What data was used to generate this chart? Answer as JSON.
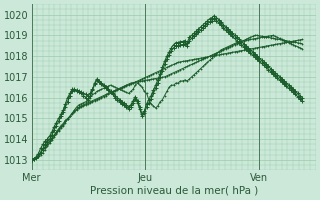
{
  "title": "Pression niveau de la mer( hPa )",
  "xlabel_ticks": [
    "Mer",
    "Jeu",
    "Ven"
  ],
  "xlabel_tick_positions": [
    0.0,
    0.4,
    0.8
  ],
  "ylim": [
    1012.5,
    1020.5
  ],
  "yticks": [
    1013,
    1014,
    1015,
    1016,
    1017,
    1018,
    1019,
    1020
  ],
  "bg_color": "#cce8d8",
  "grid_color": "#99ccaa",
  "line_color": "#1a5c2a",
  "vline_color": "#4a7a5a",
  "series_x": [
    [
      0.0,
      0.008,
      0.016,
      0.024,
      0.032,
      0.04,
      0.048,
      0.056,
      0.064,
      0.072,
      0.08,
      0.088,
      0.096,
      0.104,
      0.112,
      0.12,
      0.128,
      0.136,
      0.144,
      0.152,
      0.16,
      0.168,
      0.176,
      0.184,
      0.192,
      0.2,
      0.208,
      0.216,
      0.224,
      0.232,
      0.24,
      0.248,
      0.256,
      0.264,
      0.272,
      0.28,
      0.288,
      0.296,
      0.304,
      0.312,
      0.32,
      0.328,
      0.336,
      0.344,
      0.352,
      0.36,
      0.368,
      0.376,
      0.384,
      0.392,
      0.4,
      0.408,
      0.416,
      0.424,
      0.432,
      0.44,
      0.448,
      0.456,
      0.464,
      0.472,
      0.48,
      0.488,
      0.496,
      0.504,
      0.512,
      0.52,
      0.528,
      0.536,
      0.544,
      0.552,
      0.56,
      0.568,
      0.576,
      0.584,
      0.592,
      0.6,
      0.608,
      0.616,
      0.624,
      0.632,
      0.64,
      0.648,
      0.656,
      0.664,
      0.672,
      0.68,
      0.688,
      0.696,
      0.704,
      0.712,
      0.72,
      0.728,
      0.736,
      0.744,
      0.752,
      0.76,
      0.768,
      0.776,
      0.784,
      0.792,
      0.8,
      0.808,
      0.816,
      0.824,
      0.832,
      0.84,
      0.848,
      0.856,
      0.864,
      0.872,
      0.88,
      0.888,
      0.896,
      0.904,
      0.912,
      0.92,
      0.928,
      0.936,
      0.944,
      0.952
    ],
    [
      0.0,
      0.008,
      0.016,
      0.024,
      0.032,
      0.04,
      0.048,
      0.056,
      0.064,
      0.072,
      0.08,
      0.088,
      0.096,
      0.104,
      0.112,
      0.12,
      0.128,
      0.136,
      0.144,
      0.152,
      0.16,
      0.168,
      0.176,
      0.184,
      0.192,
      0.2,
      0.208,
      0.216,
      0.224,
      0.232,
      0.24,
      0.248,
      0.256,
      0.264,
      0.272,
      0.28,
      0.288,
      0.296,
      0.304,
      0.312,
      0.32,
      0.328,
      0.336,
      0.344,
      0.352,
      0.36,
      0.368,
      0.376,
      0.384,
      0.392,
      0.4,
      0.408,
      0.416,
      0.424,
      0.432,
      0.44,
      0.448,
      0.456,
      0.464,
      0.472,
      0.48,
      0.488,
      0.496,
      0.504,
      0.512,
      0.52,
      0.528,
      0.536,
      0.544,
      0.552,
      0.56,
      0.568,
      0.576,
      0.584,
      0.592,
      0.6,
      0.608,
      0.616,
      0.624,
      0.632,
      0.64,
      0.648,
      0.656,
      0.664,
      0.672,
      0.68,
      0.688,
      0.696,
      0.704,
      0.712,
      0.72,
      0.728,
      0.736,
      0.744,
      0.752,
      0.76,
      0.768,
      0.776,
      0.784,
      0.792,
      0.8,
      0.808,
      0.816,
      0.824,
      0.832,
      0.84,
      0.848,
      0.856,
      0.864,
      0.872,
      0.88,
      0.888,
      0.896,
      0.904,
      0.912,
      0.92,
      0.928,
      0.936,
      0.944,
      0.952
    ],
    [
      0.0,
      0.008,
      0.016,
      0.024,
      0.032,
      0.04,
      0.048,
      0.056,
      0.064,
      0.072,
      0.08,
      0.088,
      0.096,
      0.104,
      0.112,
      0.12,
      0.128,
      0.136,
      0.144,
      0.152,
      0.16,
      0.168,
      0.176,
      0.184,
      0.192,
      0.2,
      0.208,
      0.216,
      0.224,
      0.232,
      0.24,
      0.248,
      0.256,
      0.264,
      0.272,
      0.28,
      0.288,
      0.296,
      0.304,
      0.312,
      0.32,
      0.328,
      0.336,
      0.344,
      0.352,
      0.36,
      0.368,
      0.376,
      0.384,
      0.392,
      0.4,
      0.408,
      0.416,
      0.424,
      0.432,
      0.44,
      0.448,
      0.456,
      0.464,
      0.472,
      0.48,
      0.488,
      0.496,
      0.504,
      0.512,
      0.52,
      0.528,
      0.536,
      0.544,
      0.552,
      0.56,
      0.568,
      0.576,
      0.584,
      0.592,
      0.6,
      0.608,
      0.616,
      0.624,
      0.632,
      0.64,
      0.648,
      0.656,
      0.664,
      0.672,
      0.68,
      0.688,
      0.696,
      0.704,
      0.712,
      0.72,
      0.728,
      0.736,
      0.744,
      0.752,
      0.76,
      0.768,
      0.776,
      0.784,
      0.792,
      0.8,
      0.808,
      0.816,
      0.824,
      0.832,
      0.84,
      0.848,
      0.856,
      0.864,
      0.872,
      0.88,
      0.888,
      0.896,
      0.904,
      0.912,
      0.92,
      0.928,
      0.936,
      0.944,
      0.952
    ]
  ],
  "series": [
    [
      1013.0,
      1013.05,
      1013.1,
      1013.2,
      1013.35,
      1013.5,
      1013.6,
      1013.75,
      1013.9,
      1014.05,
      1014.2,
      1014.35,
      1014.5,
      1014.65,
      1014.75,
      1014.9,
      1015.0,
      1015.1,
      1015.2,
      1015.3,
      1015.4,
      1015.5,
      1015.55,
      1015.6,
      1015.65,
      1015.7,
      1015.75,
      1015.8,
      1015.85,
      1015.9,
      1015.95,
      1016.0,
      1016.05,
      1016.1,
      1016.15,
      1016.2,
      1016.25,
      1016.3,
      1016.35,
      1016.4,
      1016.45,
      1016.5,
      1016.55,
      1016.6,
      1016.65,
      1016.7,
      1016.75,
      1016.8,
      1016.85,
      1016.9,
      1016.95,
      1017.0,
      1017.05,
      1017.1,
      1017.15,
      1017.2,
      1017.25,
      1017.3,
      1017.35,
      1017.4,
      1017.45,
      1017.5,
      1017.55,
      1017.6,
      1017.65,
      1017.7,
      1017.72,
      1017.74,
      1017.76,
      1017.78,
      1017.8,
      1017.82,
      1017.84,
      1017.86,
      1017.88,
      1017.9,
      1017.92,
      1017.94,
      1017.96,
      1017.98,
      1018.0,
      1018.02,
      1018.04,
      1018.06,
      1018.08,
      1018.1,
      1018.12,
      1018.14,
      1018.16,
      1018.18,
      1018.2,
      1018.22,
      1018.24,
      1018.26,
      1018.28,
      1018.3,
      1018.32,
      1018.34,
      1018.36,
      1018.38,
      1018.4,
      1018.42,
      1018.44,
      1018.46,
      1018.48,
      1018.5,
      1018.52,
      1018.54,
      1018.56,
      1018.58,
      1018.6,
      1018.62,
      1018.64,
      1018.66,
      1018.68,
      1018.7,
      1018.72,
      1018.74,
      1018.76,
      1018.78,
      1018.8
    ],
    [
      1013.0,
      1013.05,
      1013.1,
      1013.2,
      1013.35,
      1013.5,
      1013.6,
      1013.75,
      1013.9,
      1014.05,
      1014.2,
      1014.3,
      1014.45,
      1014.6,
      1014.7,
      1014.85,
      1014.95,
      1015.1,
      1015.25,
      1015.35,
      1015.45,
      1015.55,
      1015.6,
      1015.65,
      1015.7,
      1015.75,
      1015.8,
      1015.85,
      1015.9,
      1015.95,
      1016.0,
      1016.05,
      1016.1,
      1016.15,
      1016.2,
      1016.25,
      1016.3,
      1016.35,
      1016.4,
      1016.45,
      1016.5,
      1016.55,
      1016.6,
      1016.65,
      1016.7,
      1016.72,
      1016.74,
      1016.76,
      1016.78,
      1016.8,
      1016.82,
      1016.84,
      1016.86,
      1016.88,
      1016.9,
      1016.92,
      1016.94,
      1016.96,
      1016.98,
      1017.0,
      1017.05,
      1017.1,
      1017.15,
      1017.2,
      1017.25,
      1017.3,
      1017.35,
      1017.4,
      1017.45,
      1017.5,
      1017.55,
      1017.6,
      1017.65,
      1017.7,
      1017.75,
      1017.8,
      1017.85,
      1017.9,
      1017.95,
      1018.0,
      1018.05,
      1018.1,
      1018.15,
      1018.2,
      1018.25,
      1018.3,
      1018.35,
      1018.4,
      1018.45,
      1018.5,
      1018.55,
      1018.6,
      1018.65,
      1018.7,
      1018.75,
      1018.8,
      1018.85,
      1018.9,
      1018.95,
      1019.0,
      1019.0,
      1018.98,
      1018.96,
      1018.94,
      1018.92,
      1018.9,
      1018.88,
      1018.86,
      1018.84,
      1018.82,
      1018.8,
      1018.78,
      1018.76,
      1018.74,
      1018.72,
      1018.7,
      1018.68,
      1018.66,
      1018.64,
      1018.62,
      1018.6
    ],
    [
      1013.0,
      1013.05,
      1013.1,
      1013.15,
      1013.25,
      1013.35,
      1013.5,
      1013.65,
      1013.8,
      1013.95,
      1014.1,
      1014.25,
      1014.4,
      1014.55,
      1014.65,
      1014.8,
      1014.95,
      1015.1,
      1015.25,
      1015.4,
      1015.55,
      1015.65,
      1015.7,
      1015.75,
      1015.8,
      1015.85,
      1016.0,
      1016.15,
      1016.2,
      1016.3,
      1016.35,
      1016.4,
      1016.45,
      1016.5,
      1016.55,
      1016.6,
      1016.55,
      1016.5,
      1016.45,
      1016.4,
      1016.35,
      1016.3,
      1016.25,
      1016.2,
      1016.3,
      1016.4,
      1016.6,
      1016.7,
      1016.6,
      1016.5,
      1016.3,
      1016.2,
      1015.9,
      1015.7,
      1015.6,
      1015.5,
      1015.6,
      1015.8,
      1015.9,
      1016.1,
      1016.3,
      1016.5,
      1016.6,
      1016.6,
      1016.7,
      1016.7,
      1016.8,
      1016.8,
      1016.85,
      1016.8,
      1016.9,
      1017.0,
      1017.1,
      1017.2,
      1017.3,
      1017.4,
      1017.5,
      1017.6,
      1017.7,
      1017.8,
      1017.9,
      1018.0,
      1018.1,
      1018.2,
      1018.3,
      1018.35,
      1018.4,
      1018.45,
      1018.5,
      1018.55,
      1018.6,
      1018.65,
      1018.7,
      1018.72,
      1018.74,
      1018.76,
      1018.78,
      1018.8,
      1018.82,
      1018.84,
      1018.86,
      1018.88,
      1018.9,
      1018.92,
      1018.94,
      1018.96,
      1018.98,
      1019.0,
      1018.95,
      1018.9,
      1018.85,
      1018.8,
      1018.75,
      1018.7,
      1018.65,
      1018.6,
      1018.55,
      1018.5,
      1018.45,
      1018.4,
      1018.35
    ]
  ],
  "wavy_series": [
    [
      1013.0,
      1013.05,
      1013.15,
      1013.3,
      1013.55,
      1013.75,
      1013.9,
      1014.0,
      1014.15,
      1014.35,
      1014.6,
      1014.8,
      1015.0,
      1015.2,
      1015.4,
      1015.7,
      1016.0,
      1016.2,
      1016.4,
      1016.4,
      1016.35,
      1016.3,
      1016.25,
      1016.2,
      1016.15,
      1016.1,
      1016.2,
      1016.4,
      1016.7,
      1016.9,
      1016.8,
      1016.7,
      1016.6,
      1016.5,
      1016.4,
      1016.3,
      1016.2,
      1016.1,
      1016.0,
      1015.9,
      1015.8,
      1015.75,
      1015.65,
      1015.55,
      1015.65,
      1015.85,
      1016.05,
      1015.85,
      1015.55,
      1015.2,
      1015.35,
      1015.7,
      1015.9,
      1016.1,
      1016.35,
      1016.6,
      1016.85,
      1017.15,
      1017.45,
      1017.75,
      1018.0,
      1018.2,
      1018.4,
      1018.55,
      1018.65,
      1018.65,
      1018.7,
      1018.7,
      1018.75,
      1018.65,
      1018.9,
      1019.0,
      1019.1,
      1019.2,
      1019.3,
      1019.4,
      1019.5,
      1019.6,
      1019.7,
      1019.8,
      1019.85,
      1019.95,
      1019.85,
      1019.75,
      1019.65,
      1019.5,
      1019.4,
      1019.3,
      1019.2,
      1019.1,
      1019.0,
      1018.9,
      1018.8,
      1018.7,
      1018.6,
      1018.5,
      1018.4,
      1018.3,
      1018.2,
      1018.1,
      1018.0,
      1017.9,
      1017.8,
      1017.7,
      1017.6,
      1017.5,
      1017.4,
      1017.3,
      1017.2,
      1017.1,
      1017.0,
      1016.9,
      1016.8,
      1016.7,
      1016.6,
      1016.5,
      1016.4,
      1016.3,
      1016.2,
      1016.1,
      1016.0
    ],
    [
      1013.0,
      1013.05,
      1013.1,
      1013.2,
      1013.35,
      1013.55,
      1013.75,
      1013.85,
      1014.0,
      1014.2,
      1014.45,
      1014.65,
      1014.85,
      1015.1,
      1015.3,
      1015.55,
      1015.8,
      1016.1,
      1016.3,
      1016.35,
      1016.3,
      1016.25,
      1016.2,
      1016.1,
      1016.0,
      1015.9,
      1016.1,
      1016.35,
      1016.65,
      1016.85,
      1016.75,
      1016.65,
      1016.55,
      1016.45,
      1016.35,
      1016.25,
      1016.15,
      1016.0,
      1015.9,
      1015.8,
      1015.7,
      1015.65,
      1015.55,
      1015.45,
      1015.55,
      1015.75,
      1015.95,
      1015.75,
      1015.45,
      1015.1,
      1015.25,
      1015.55,
      1015.75,
      1015.95,
      1016.2,
      1016.45,
      1016.7,
      1017.0,
      1017.3,
      1017.6,
      1017.85,
      1018.05,
      1018.25,
      1018.4,
      1018.5,
      1018.5,
      1018.55,
      1018.55,
      1018.6,
      1018.5,
      1018.75,
      1018.85,
      1018.95,
      1019.05,
      1019.15,
      1019.25,
      1019.35,
      1019.45,
      1019.55,
      1019.65,
      1019.7,
      1019.8,
      1019.7,
      1019.6,
      1019.5,
      1019.35,
      1019.25,
      1019.15,
      1019.05,
      1018.95,
      1018.85,
      1018.75,
      1018.65,
      1018.55,
      1018.45,
      1018.35,
      1018.25,
      1018.15,
      1018.05,
      1017.95,
      1017.85,
      1017.75,
      1017.65,
      1017.55,
      1017.45,
      1017.35,
      1017.25,
      1017.15,
      1017.05,
      1016.95,
      1016.85,
      1016.75,
      1016.65,
      1016.55,
      1016.45,
      1016.35,
      1016.25,
      1016.15,
      1016.05,
      1015.95,
      1015.85
    ]
  ]
}
